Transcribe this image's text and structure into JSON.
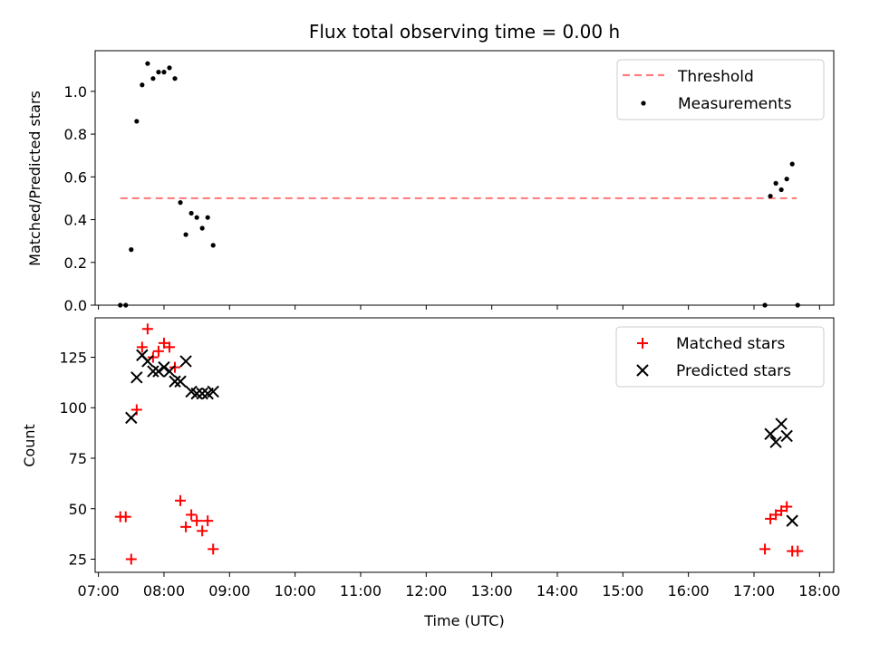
{
  "chart_data": [
    {
      "type": "scatter",
      "title": "Flux total observing time = 0.00 h",
      "ylabel": "Matched/Predicted stars",
      "xlabel": "",
      "xlim": [
        "06:57",
        "18:13"
      ],
      "ylim": [
        0,
        1.19
      ],
      "yticks": [
        "0.0",
        "0.2",
        "0.4",
        "0.6",
        "0.8",
        "1.0"
      ],
      "legend_position": "upper right",
      "threshold": {
        "name": "Threshold",
        "value": 0.5,
        "x_start": "07:20",
        "x_end": "17:39",
        "color": "#ff7f7f"
      },
      "series": [
        {
          "name": "Measurements",
          "color": "#000000",
          "marker": "dot",
          "points": [
            {
              "x": "07:20",
              "y": 0.0
            },
            {
              "x": "07:25",
              "y": 0.0
            },
            {
              "x": "07:30",
              "y": 0.26
            },
            {
              "x": "07:35",
              "y": 0.86
            },
            {
              "x": "07:40",
              "y": 1.03
            },
            {
              "x": "07:45",
              "y": 1.13
            },
            {
              "x": "07:50",
              "y": 1.06
            },
            {
              "x": "07:55",
              "y": 1.09
            },
            {
              "x": "08:00",
              "y": 1.09
            },
            {
              "x": "08:05",
              "y": 1.11
            },
            {
              "x": "08:10",
              "y": 1.06
            },
            {
              "x": "08:15",
              "y": 0.48
            },
            {
              "x": "08:20",
              "y": 0.33
            },
            {
              "x": "08:25",
              "y": 0.43
            },
            {
              "x": "08:30",
              "y": 0.41
            },
            {
              "x": "08:35",
              "y": 0.36
            },
            {
              "x": "08:40",
              "y": 0.41
            },
            {
              "x": "08:45",
              "y": 0.28
            },
            {
              "x": "17:10",
              "y": 0.0
            },
            {
              "x": "17:15",
              "y": 0.51
            },
            {
              "x": "17:20",
              "y": 0.57
            },
            {
              "x": "17:25",
              "y": 0.54
            },
            {
              "x": "17:30",
              "y": 0.59
            },
            {
              "x": "17:35",
              "y": 0.66
            },
            {
              "x": "17:40",
              "y": 0.0
            }
          ]
        }
      ]
    },
    {
      "type": "scatter",
      "title": "",
      "ylabel": "Count",
      "xlabel": "Time (UTC)",
      "xlim": [
        "06:57",
        "18:13"
      ],
      "ylim": [
        18.5,
        144.5
      ],
      "yticks": [
        "25",
        "50",
        "75",
        "100",
        "125"
      ],
      "xticks": [
        "07:00",
        "08:00",
        "09:00",
        "10:00",
        "11:00",
        "12:00",
        "13:00",
        "14:00",
        "15:00",
        "16:00",
        "17:00",
        "18:00"
      ],
      "legend_position": "upper right",
      "series": [
        {
          "name": "Matched stars",
          "color": "#ff0000",
          "marker": "plus",
          "points": [
            {
              "x": "07:20",
              "y": 46
            },
            {
              "x": "07:25",
              "y": 46
            },
            {
              "x": "07:30",
              "y": 25
            },
            {
              "x": "07:35",
              "y": 99
            },
            {
              "x": "07:40",
              "y": 130
            },
            {
              "x": "07:45",
              "y": 139
            },
            {
              "x": "07:50",
              "y": 125
            },
            {
              "x": "07:55",
              "y": 128
            },
            {
              "x": "08:00",
              "y": 132
            },
            {
              "x": "08:05",
              "y": 130
            },
            {
              "x": "08:10",
              "y": 120
            },
            {
              "x": "08:15",
              "y": 54
            },
            {
              "x": "08:20",
              "y": 41
            },
            {
              "x": "08:25",
              "y": 47
            },
            {
              "x": "08:30",
              "y": 44
            },
            {
              "x": "08:35",
              "y": 39
            },
            {
              "x": "08:40",
              "y": 44
            },
            {
              "x": "08:45",
              "y": 30
            },
            {
              "x": "17:10",
              "y": 30
            },
            {
              "x": "17:15",
              "y": 45
            },
            {
              "x": "17:20",
              "y": 47
            },
            {
              "x": "17:25",
              "y": 49
            },
            {
              "x": "17:30",
              "y": 51
            },
            {
              "x": "17:35",
              "y": 29
            },
            {
              "x": "17:40",
              "y": 29
            }
          ]
        },
        {
          "name": "Predicted stars",
          "color": "#000000",
          "marker": "x",
          "points": [
            {
              "x": "07:30",
              "y": 95
            },
            {
              "x": "07:35",
              "y": 115
            },
            {
              "x": "07:40",
              "y": 126
            },
            {
              "x": "07:45",
              "y": 123
            },
            {
              "x": "07:50",
              "y": 118
            },
            {
              "x": "07:55",
              "y": 118
            },
            {
              "x": "08:00",
              "y": 120
            },
            {
              "x": "08:05",
              "y": 118
            },
            {
              "x": "08:10",
              "y": 113
            },
            {
              "x": "08:15",
              "y": 113
            },
            {
              "x": "08:20",
              "y": 123
            },
            {
              "x": "08:25",
              "y": 108
            },
            {
              "x": "08:30",
              "y": 107
            },
            {
              "x": "08:35",
              "y": 107
            },
            {
              "x": "08:40",
              "y": 107
            },
            {
              "x": "08:45",
              "y": 108
            },
            {
              "x": "17:15",
              "y": 87
            },
            {
              "x": "17:20",
              "y": 83
            },
            {
              "x": "17:25",
              "y": 92
            },
            {
              "x": "17:30",
              "y": 86
            },
            {
              "x": "17:35",
              "y": 44
            }
          ]
        }
      ]
    }
  ]
}
